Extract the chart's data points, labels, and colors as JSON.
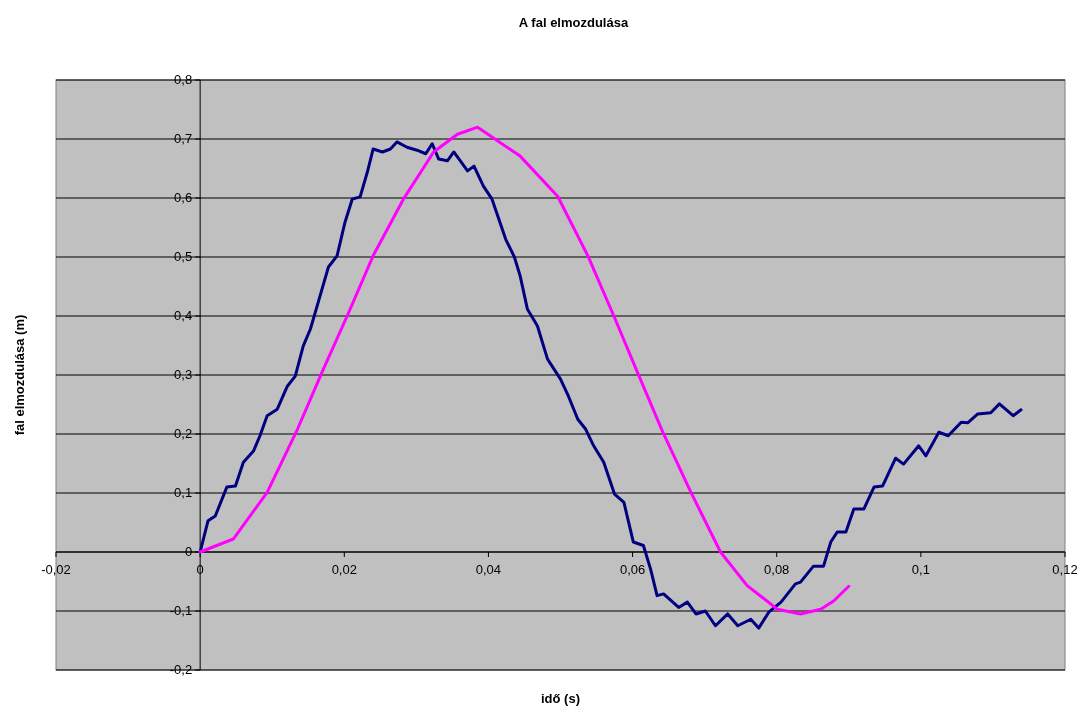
{
  "chart_data": {
    "type": "line",
    "title": "A fal elmozdulása",
    "xlabel": "idő (s)",
    "ylabel": "fal elmozdulása (m)",
    "xlim": [
      -0.02,
      0.12
    ],
    "ylim": [
      -0.2,
      0.8
    ],
    "xticks": [
      {
        "value": -0.02,
        "label": "-0,02"
      },
      0,
      {
        "value": 0.02,
        "label": "0,02"
      },
      {
        "value": 0.04,
        "label": "0,04"
      },
      {
        "value": 0.06,
        "label": "0,06"
      },
      {
        "value": 0.08,
        "label": "0,08"
      },
      {
        "value": 0.1,
        "label": "0,1"
      },
      {
        "value": 0.12,
        "label": "0,12"
      }
    ],
    "yticks": [
      {
        "value": -0.2,
        "label": "-0,2"
      },
      {
        "value": -0.1,
        "label": "-0,1"
      },
      0,
      {
        "value": 0.1,
        "label": "0,1"
      },
      {
        "value": 0.2,
        "label": "0,2"
      },
      {
        "value": 0.3,
        "label": "0,3"
      },
      {
        "value": 0.4,
        "label": "0,4"
      },
      {
        "value": 0.5,
        "label": "0,5"
      },
      {
        "value": 0.6,
        "label": "0,6"
      },
      {
        "value": 0.7,
        "label": "0,7"
      },
      {
        "value": 0.8,
        "label": "0,8"
      }
    ],
    "grid": "y",
    "marker": "none",
    "line_style": "solid",
    "series": [
      {
        "color": "#000080",
        "x": [
          0,
          0.0011,
          0.0021,
          0.0037,
          0.0049,
          0.006,
          0.0074,
          0.0083,
          0.0093,
          0.0107,
          0.0121,
          0.0132,
          0.0143,
          0.0153,
          0.0164,
          0.0178,
          0.019,
          0.0201,
          0.0211,
          0.0222,
          0.0232,
          0.024,
          0.0253,
          0.0264,
          0.0273,
          0.0287,
          0.0301,
          0.0313,
          0.0322,
          0.0331,
          0.0343,
          0.0352,
          0.0371,
          0.038,
          0.0393,
          0.0405,
          0.0424,
          0.0436,
          0.0444,
          0.0454,
          0.0468,
          0.0482,
          0.05,
          0.0511,
          0.0524,
          0.0535,
          0.0546,
          0.056,
          0.0575,
          0.0588,
          0.0601,
          0.0615,
          0.0625,
          0.0634,
          0.0643,
          0.0664,
          0.0676,
          0.0688,
          0.0701,
          0.0715,
          0.0732,
          0.0746,
          0.0764,
          0.0775,
          0.0789,
          0.0806,
          0.0826,
          0.0833,
          0.0851,
          0.0865,
          0.0875,
          0.0884,
          0.0896,
          0.0907,
          0.0921,
          0.0935,
          0.0947,
          0.0965,
          0.0976,
          0.0997,
          0.1007,
          0.1025,
          0.1038,
          0.1056,
          0.1065,
          0.1079,
          0.1097,
          0.1109,
          0.1128,
          0.1139
        ],
        "values": [
          0,
          0.053,
          0.061,
          0.11,
          0.112,
          0.152,
          0.171,
          0.197,
          0.231,
          0.242,
          0.281,
          0.298,
          0.349,
          0.378,
          0.424,
          0.483,
          0.502,
          0.559,
          0.598,
          0.602,
          0.644,
          0.683,
          0.678,
          0.683,
          0.695,
          0.686,
          0.681,
          0.675,
          0.692,
          0.666,
          0.663,
          0.678,
          0.646,
          0.654,
          0.62,
          0.598,
          0.53,
          0.5,
          0.468,
          0.412,
          0.383,
          0.327,
          0.293,
          0.264,
          0.225,
          0.208,
          0.18,
          0.152,
          0.098,
          0.084,
          0.017,
          0.011,
          -0.029,
          -0.074,
          -0.071,
          -0.094,
          -0.085,
          -0.105,
          -0.1,
          -0.125,
          -0.105,
          -0.125,
          -0.114,
          -0.129,
          -0.102,
          -0.085,
          -0.054,
          -0.051,
          -0.024,
          -0.024,
          0.017,
          0.034,
          0.034,
          0.073,
          0.073,
          0.11,
          0.112,
          0.159,
          0.149,
          0.18,
          0.163,
          0.203,
          0.197,
          0.22,
          0.219,
          0.234,
          0.236,
          0.251,
          0.231,
          0.241
        ]
      },
      {
        "color": "#ff00ff",
        "x": [
          0,
          0.0046,
          0.0093,
          0.0135,
          0.0171,
          0.0204,
          0.024,
          0.0282,
          0.0324,
          0.0357,
          0.0385,
          0.0444,
          0.0496,
          0.0538,
          0.0574,
          0.0609,
          0.0642,
          0.0681,
          0.0722,
          0.0759,
          0.0801,
          0.0833,
          0.0861,
          0.0879,
          0.09
        ],
        "values": [
          0,
          0.022,
          0.101,
          0.208,
          0.31,
          0.4,
          0.502,
          0.598,
          0.678,
          0.708,
          0.72,
          0.671,
          0.603,
          0.502,
          0.4,
          0.298,
          0.203,
          0.101,
          0,
          -0.057,
          -0.097,
          -0.105,
          -0.097,
          -0.083,
          -0.058
        ]
      }
    ]
  }
}
